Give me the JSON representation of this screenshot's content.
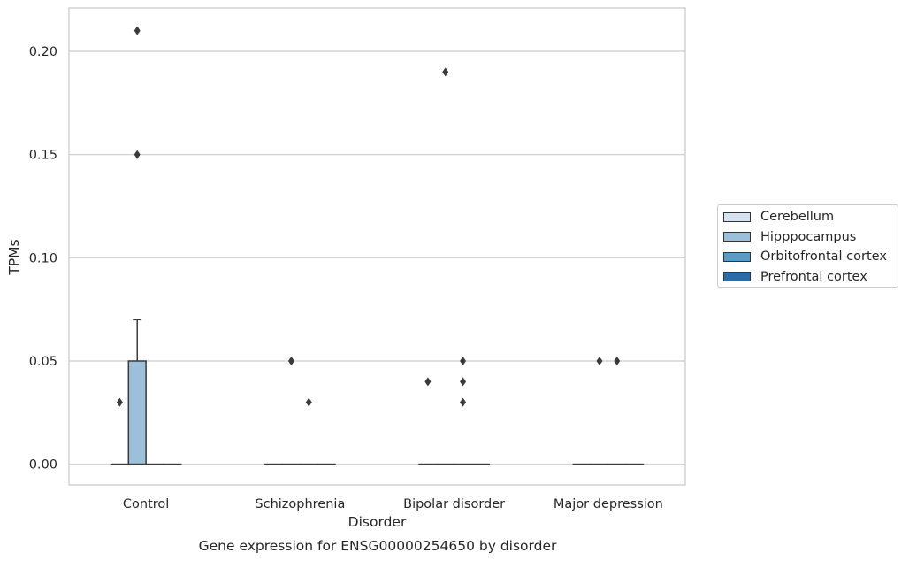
{
  "chart_data": {
    "type": "box",
    "xlabel": "Disorder",
    "ylabel": "TPMs",
    "caption": "Gene expression for ENSG00000254650 by disorder",
    "categories": [
      "Control",
      "Schizophrenia",
      "Bipolar disorder",
      "Major depression"
    ],
    "ylim": [
      -0.01,
      0.221
    ],
    "yticks": [
      0.0,
      0.05,
      0.1,
      0.15,
      0.2
    ],
    "ytick_labels": [
      "0.00",
      "0.05",
      "0.10",
      "0.15",
      "0.20"
    ],
    "grid": true,
    "legend_position": "right",
    "series": [
      {
        "name": "Cerebellum",
        "color": "#d4e3ef",
        "boxes": [
          {
            "category": "Control",
            "q1": 0,
            "median": 0,
            "q3": 0,
            "whisker_low": 0,
            "whisker_high": 0,
            "outliers": [
              0.03
            ]
          },
          {
            "category": "Schizophrenia",
            "q1": 0,
            "median": 0,
            "q3": 0,
            "whisker_low": 0,
            "whisker_high": 0,
            "outliers": []
          },
          {
            "category": "Bipolar disorder",
            "q1": 0,
            "median": 0,
            "q3": 0,
            "whisker_low": 0,
            "whisker_high": 0,
            "outliers": [
              0.04
            ]
          },
          {
            "category": "Major depression",
            "q1": 0,
            "median": 0,
            "q3": 0,
            "whisker_low": 0,
            "whisker_high": 0,
            "outliers": []
          }
        ]
      },
      {
        "name": "Hipppocampus",
        "color": "#9cc0da",
        "boxes": [
          {
            "category": "Control",
            "q1": 0,
            "median": 0,
            "q3": 0.05,
            "whisker_low": 0,
            "whisker_high": 0.07,
            "outliers": [
              0.15,
              0.21
            ]
          },
          {
            "category": "Schizophrenia",
            "q1": 0,
            "median": 0,
            "q3": 0,
            "whisker_low": 0,
            "whisker_high": 0,
            "outliers": [
              0.05
            ]
          },
          {
            "category": "Bipolar disorder",
            "q1": 0,
            "median": 0,
            "q3": 0,
            "whisker_low": 0,
            "whisker_high": 0,
            "outliers": [
              0.19
            ]
          },
          {
            "category": "Major depression",
            "q1": 0,
            "median": 0,
            "q3": 0,
            "whisker_low": 0,
            "whisker_high": 0,
            "outliers": [
              0.05
            ]
          }
        ]
      },
      {
        "name": "Orbitofrontal cortex",
        "color": "#5b9bc8",
        "boxes": [
          {
            "category": "Control",
            "q1": 0,
            "median": 0,
            "q3": 0,
            "whisker_low": 0,
            "whisker_high": 0,
            "outliers": []
          },
          {
            "category": "Schizophrenia",
            "q1": 0,
            "median": 0,
            "q3": 0,
            "whisker_low": 0,
            "whisker_high": 0,
            "outliers": [
              0.03
            ]
          },
          {
            "category": "Bipolar disorder",
            "q1": 0,
            "median": 0,
            "q3": 0,
            "whisker_low": 0,
            "whisker_high": 0,
            "outliers": [
              0.03,
              0.04,
              0.05
            ]
          },
          {
            "category": "Major depression",
            "q1": 0,
            "median": 0,
            "q3": 0,
            "whisker_low": 0,
            "whisker_high": 0,
            "outliers": [
              0.05
            ]
          }
        ]
      },
      {
        "name": "Prefrontal cortex",
        "color": "#2b6ca8",
        "boxes": [
          {
            "category": "Control",
            "q1": 0,
            "median": 0,
            "q3": 0,
            "whisker_low": 0,
            "whisker_high": 0,
            "outliers": []
          },
          {
            "category": "Schizophrenia",
            "q1": 0,
            "median": 0,
            "q3": 0,
            "whisker_low": 0,
            "whisker_high": 0,
            "outliers": []
          },
          {
            "category": "Bipolar disorder",
            "q1": 0,
            "median": 0,
            "q3": 0,
            "whisker_low": 0,
            "whisker_high": 0,
            "outliers": []
          },
          {
            "category": "Major depression",
            "q1": 0,
            "median": 0,
            "q3": 0,
            "whisker_low": 0,
            "whisker_high": 0,
            "outliers": []
          }
        ]
      }
    ]
  }
}
